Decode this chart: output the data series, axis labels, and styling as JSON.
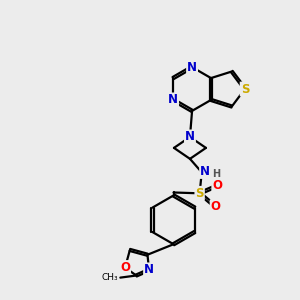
{
  "bg_color": "#ececec",
  "atom_colors": {
    "C": "#000000",
    "N": "#0000cc",
    "S": "#ccaa00",
    "O": "#ff0000",
    "H": "#555555"
  },
  "bond_color": "#000000",
  "bond_width": 1.6,
  "font_size_atom": 8.5,
  "font_size_small": 7.0
}
